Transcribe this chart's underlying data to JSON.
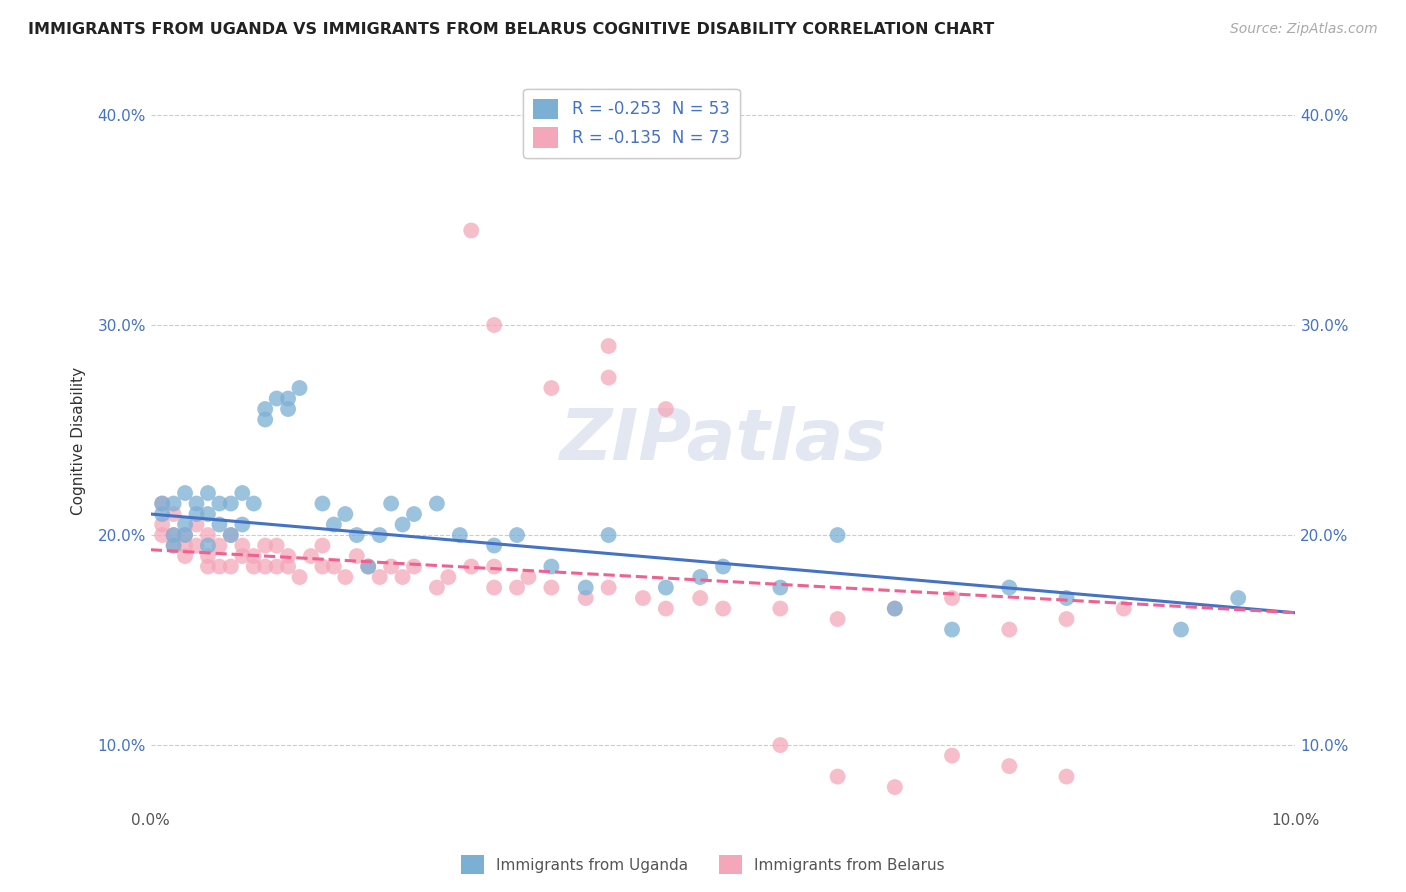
{
  "title": "IMMIGRANTS FROM UGANDA VS IMMIGRANTS FROM BELARUS COGNITIVE DISABILITY CORRELATION CHART",
  "source": "Source: ZipAtlas.com",
  "ylabel": "Cognitive Disability",
  "xlim": [
    0.0,
    0.1
  ],
  "ylim": [
    0.07,
    0.42
  ],
  "uganda_color": "#7bafd4",
  "belarus_color": "#f4a7b9",
  "uganda_line_color": "#4472c4",
  "belarus_line_color": "#f06090",
  "uganda_R": -0.253,
  "uganda_N": 53,
  "belarus_R": -0.135,
  "belarus_N": 73,
  "bottom_legend_uganda": "Immigrants from Uganda",
  "bottom_legend_belarus": "Immigrants from Belarus",
  "watermark": "ZIPatlas",
  "uganda_x": [
    0.001,
    0.001,
    0.002,
    0.002,
    0.002,
    0.003,
    0.003,
    0.003,
    0.004,
    0.004,
    0.005,
    0.005,
    0.005,
    0.006,
    0.006,
    0.007,
    0.007,
    0.008,
    0.008,
    0.009,
    0.01,
    0.01,
    0.011,
    0.012,
    0.012,
    0.013,
    0.015,
    0.016,
    0.017,
    0.018,
    0.019,
    0.02,
    0.021,
    0.022,
    0.023,
    0.025,
    0.027,
    0.03,
    0.032,
    0.035,
    0.038,
    0.04,
    0.045,
    0.048,
    0.05,
    0.055,
    0.06,
    0.065,
    0.07,
    0.075,
    0.08,
    0.09,
    0.095
  ],
  "uganda_y": [
    0.215,
    0.21,
    0.2,
    0.195,
    0.215,
    0.205,
    0.2,
    0.22,
    0.21,
    0.215,
    0.195,
    0.21,
    0.22,
    0.205,
    0.215,
    0.2,
    0.215,
    0.205,
    0.22,
    0.215,
    0.255,
    0.26,
    0.265,
    0.26,
    0.265,
    0.27,
    0.215,
    0.205,
    0.21,
    0.2,
    0.185,
    0.2,
    0.215,
    0.205,
    0.21,
    0.215,
    0.2,
    0.195,
    0.2,
    0.185,
    0.175,
    0.2,
    0.175,
    0.18,
    0.185,
    0.175,
    0.2,
    0.165,
    0.155,
    0.175,
    0.17,
    0.155,
    0.17
  ],
  "belarus_x": [
    0.001,
    0.001,
    0.001,
    0.002,
    0.002,
    0.002,
    0.003,
    0.003,
    0.003,
    0.004,
    0.004,
    0.005,
    0.005,
    0.005,
    0.006,
    0.006,
    0.007,
    0.007,
    0.008,
    0.008,
    0.009,
    0.009,
    0.01,
    0.01,
    0.011,
    0.011,
    0.012,
    0.012,
    0.013,
    0.014,
    0.015,
    0.015,
    0.016,
    0.017,
    0.018,
    0.019,
    0.02,
    0.021,
    0.022,
    0.023,
    0.025,
    0.026,
    0.028,
    0.03,
    0.03,
    0.032,
    0.033,
    0.035,
    0.038,
    0.04,
    0.043,
    0.045,
    0.048,
    0.05,
    0.055,
    0.06,
    0.065,
    0.07,
    0.075,
    0.08,
    0.085,
    0.04,
    0.028,
    0.03,
    0.035,
    0.04,
    0.045,
    0.055,
    0.06,
    0.065,
    0.07,
    0.075,
    0.08
  ],
  "belarus_y": [
    0.215,
    0.205,
    0.2,
    0.21,
    0.195,
    0.2,
    0.19,
    0.195,
    0.2,
    0.205,
    0.195,
    0.185,
    0.19,
    0.2,
    0.195,
    0.185,
    0.2,
    0.185,
    0.19,
    0.195,
    0.185,
    0.19,
    0.195,
    0.185,
    0.195,
    0.185,
    0.19,
    0.185,
    0.18,
    0.19,
    0.185,
    0.195,
    0.185,
    0.18,
    0.19,
    0.185,
    0.18,
    0.185,
    0.18,
    0.185,
    0.175,
    0.18,
    0.185,
    0.175,
    0.185,
    0.175,
    0.18,
    0.175,
    0.17,
    0.175,
    0.17,
    0.165,
    0.17,
    0.165,
    0.165,
    0.16,
    0.165,
    0.17,
    0.155,
    0.16,
    0.165,
    0.29,
    0.345,
    0.3,
    0.27,
    0.275,
    0.26,
    0.1,
    0.085,
    0.08,
    0.095,
    0.09,
    0.085
  ]
}
